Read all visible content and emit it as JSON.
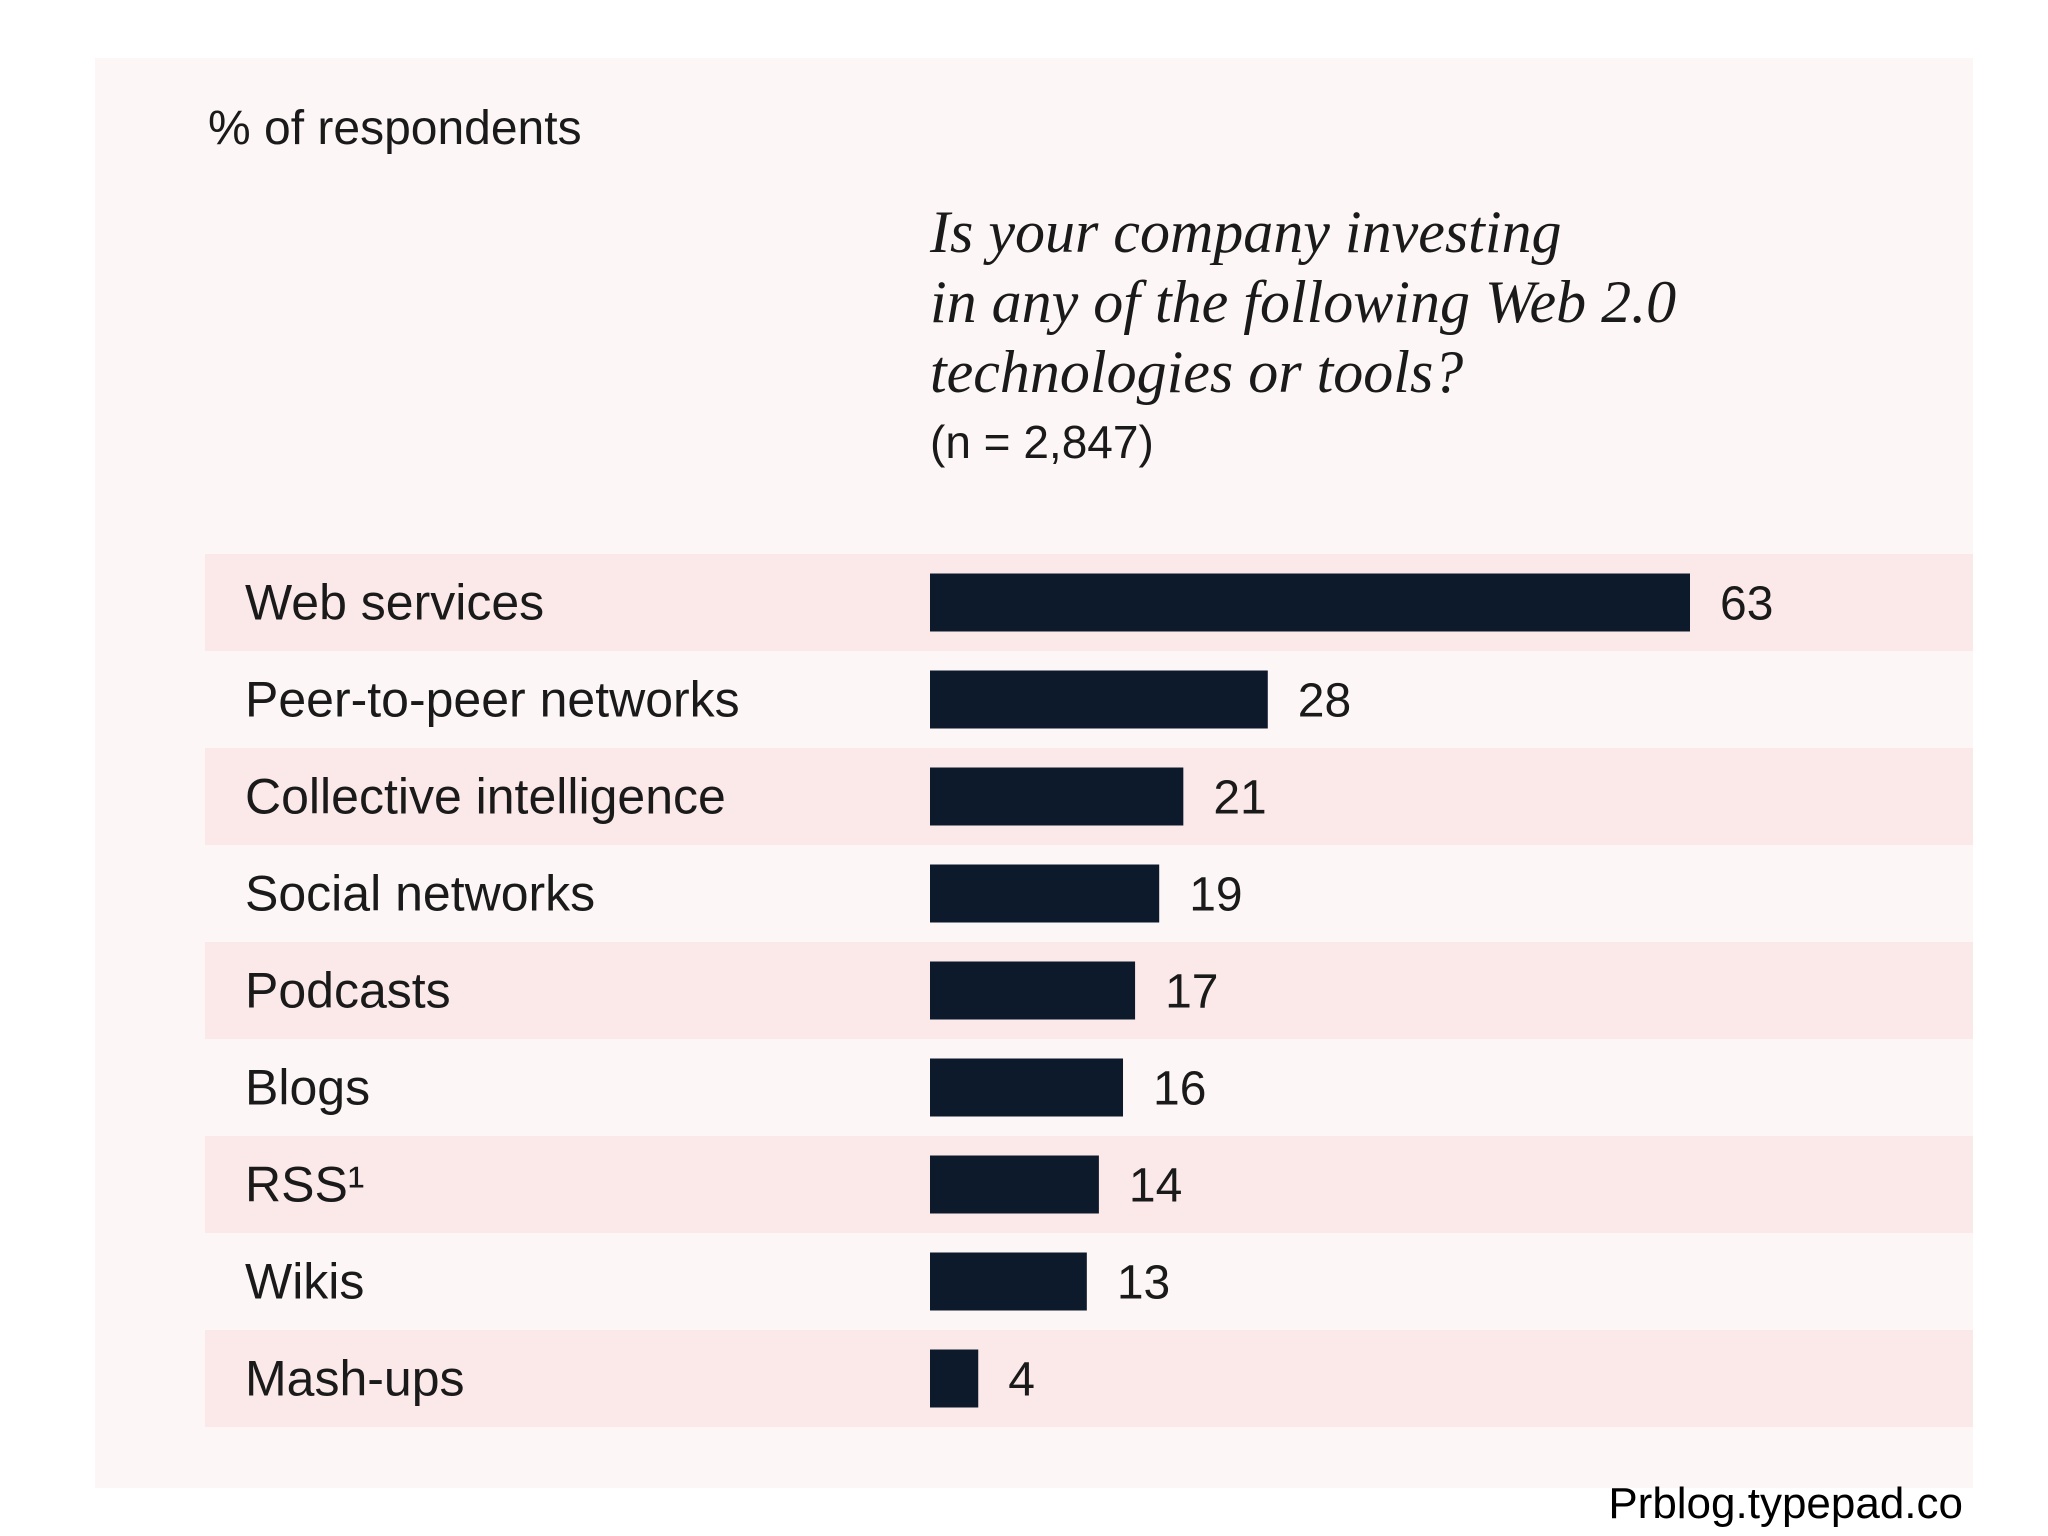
{
  "chart_data": {
    "type": "bar",
    "orientation": "horizontal",
    "unit_label": "% of respondents",
    "title_lines": [
      "Is your company investing",
      "in any of the following Web 2.0",
      "technologies or tools?"
    ],
    "sample_size": "(n = 2,847)",
    "categories": [
      "Web services",
      "Peer-to-peer networks",
      "Collective intelligence",
      "Social networks",
      "Podcasts",
      "Blogs",
      "RSS¹",
      "Wikis",
      "Mash-ups"
    ],
    "values": [
      63,
      28,
      21,
      19,
      17,
      16,
      14,
      13,
      4
    ],
    "value_labels": [
      "63",
      "28",
      "21",
      "19",
      "17",
      "16",
      "14",
      "13",
      "4"
    ],
    "xlim": [
      0,
      63
    ],
    "grid": false,
    "legend": "none"
  },
  "colors": {
    "panel_background": "#fdf6f6",
    "row_stripe": "#fbe9ea",
    "bar": "#0d1a2b",
    "text": "#1a1a1a",
    "source_text": "#000000"
  },
  "source_credit": "Prblog.typepad.co"
}
